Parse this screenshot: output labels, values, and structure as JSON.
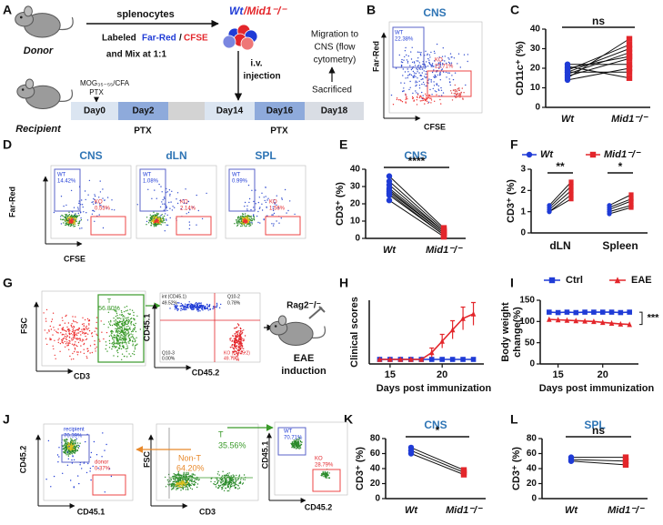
{
  "panel_labels": [
    "A",
    "B",
    "C",
    "D",
    "E",
    "F",
    "G",
    "H",
    "I",
    "J",
    "K",
    "L"
  ],
  "a": {
    "donor": "Donor",
    "splenocytes": "splenocytes",
    "wt": "Wt",
    "mid1": "/Mid1⁻/⁻",
    "labeled": "Labeled",
    "far_red": "Far-Red",
    "slash": "/",
    "cfse": "CFSE",
    "mix": "and Mix at 1:1",
    "iv": "i.v.",
    "injection": "injection",
    "migration": [
      "Migration to",
      "CNS (flow",
      "cytometry)"
    ],
    "sacrificed": "Sacrificed",
    "recipient": "Recipient",
    "mog": "MOG₃₅₋₅₅/CFA",
    "ptx_top": "PTX",
    "days": [
      "Day0",
      "Day2",
      "Day14",
      "Day16",
      "Day18"
    ],
    "ptx_bottom": [
      "PTX",
      "PTX"
    ]
  },
  "b": {
    "title": "CNS",
    "y": "Far-Red",
    "x": "CFSE",
    "wt": "WT",
    "wt_pct": "22.38%",
    "ko": "KO",
    "ko_pct": "22.71%"
  },
  "d": {
    "y": "Far-Red",
    "x": "CFSE",
    "plots": [
      {
        "title": "CNS",
        "wt": "WT",
        "wt_pct": "14.42%",
        "ko": "KO",
        "ko_pct": "0.53%"
      },
      {
        "title": "dLN",
        "wt": "WT",
        "wt_pct": "1.08%",
        "ko": "KO",
        "ko_pct": "2.14%"
      },
      {
        "title": "SPL",
        "wt": "WT",
        "wt_pct": "0.99%",
        "ko": "KO",
        "ko_pct": "1.56%"
      }
    ]
  },
  "g": {
    "y": "FSC",
    "x": "CD3",
    "t": "T",
    "t_pct": "56.80%",
    "q_y": "CD45.1",
    "q_x": "CD45.2",
    "q1": "int (CD45.1)",
    "q1_pct": "49.52%",
    "q2": "Q10-2",
    "q2_pct": "0.78%",
    "q3": "Q10-3",
    "q3_pct": "0.00%",
    "q4": "KO (CD45.2)",
    "q4_pct": "49.70%",
    "mouse": "Rag2⁻/⁻",
    "eae": "EAE",
    "induction": "induction"
  },
  "j": {
    "p1_y": "CD45.2",
    "p1_x": "CD45.1",
    "recipient": "recipient",
    "recipient_pct": "70.39%",
    "donor": "donor",
    "donor_pct": "0.37%",
    "non_t": "Non-T",
    "non_t_pct": "64.20%",
    "t": "T",
    "t_pct": "35.56%",
    "p2_y": "FSC",
    "p2_x": "CD3",
    "wt": "WT",
    "wt_pct": "70.71%",
    "ko": "KO",
    "ko_pct": "28.79%",
    "p3_y": "CD45.1",
    "p3_x": "CD45.2"
  },
  "chart_data": [
    {
      "type": "paired",
      "ylabel": "CD11c⁺ (%)",
      "series": [
        {
          "name": "Wt",
          "color": "#1f3bd6",
          "values": [
            14,
            16,
            17,
            18,
            19,
            20,
            21,
            22,
            15,
            18
          ]
        },
        {
          "name": "Mid1⁻/⁻",
          "color": "#e3262b",
          "values": [
            20,
            25,
            28,
            30,
            32,
            26,
            15,
            22,
            35,
            18
          ]
        }
      ],
      "ylim": [
        0,
        40
      ],
      "yticks": [
        0,
        10,
        20,
        30,
        40
      ],
      "significance": "ns"
    },
    {
      "type": "paired",
      "title": "CNS",
      "ylabel": "CD3⁺ (%)",
      "series": [
        {
          "name": "Wt",
          "color": "#1f3bd6",
          "values": [
            36,
            33,
            31,
            29,
            28,
            27,
            26,
            25,
            22
          ]
        },
        {
          "name": "Mid1⁻/⁻",
          "color": "#e3262b",
          "values": [
            6,
            5,
            4,
            4,
            3,
            3,
            2,
            2,
            1
          ]
        }
      ],
      "ylim": [
        0,
        40
      ],
      "yticks": [
        0,
        10,
        20,
        30,
        40
      ],
      "significance": "****"
    },
    {
      "type": "paired_groups",
      "ylabel": "CD3⁺ (%)",
      "categories": [
        "dLN",
        "Spleen"
      ],
      "series": [
        {
          "name": "Wt",
          "color": "#1f3bd6",
          "values": [
            [
              1.0,
              1.1,
              1.2,
              1.3,
              1.0
            ],
            [
              1.0,
              1.1,
              1.2,
              1.3,
              0.9
            ]
          ]
        },
        {
          "name": "Mid1⁻/⁻",
          "color": "#e3262b",
          "values": [
            [
              1.8,
              2.0,
              2.2,
              2.4,
              1.6
            ],
            [
              1.3,
              1.5,
              1.6,
              1.8,
              1.2
            ]
          ]
        }
      ],
      "ylim": [
        0,
        3
      ],
      "yticks": [
        0,
        1,
        2,
        3
      ],
      "significance": [
        "**",
        "*"
      ],
      "legend": "top"
    },
    {
      "type": "line",
      "ylabel": "Clinical scores",
      "xlabel": "Days post immunization",
      "x": [
        14,
        15,
        16,
        17,
        18,
        19,
        20,
        21,
        22,
        23
      ],
      "series": [
        {
          "color": "#1f3bd6",
          "marker": "square",
          "values": [
            0,
            0,
            0,
            0,
            0,
            0,
            0,
            0,
            0,
            0
          ]
        },
        {
          "color": "#e3262b",
          "marker": "triangle",
          "values": [
            0,
            0,
            0,
            0,
            0,
            0.3,
            0.8,
            1.3,
            1.8,
            2.0
          ],
          "errors": [
            0,
            0,
            0,
            0,
            0,
            0.2,
            0.3,
            0.4,
            0.5,
            0.5
          ]
        }
      ],
      "xlim": [
        13,
        24
      ],
      "xticks": [
        15,
        20
      ],
      "ylim": [
        -0.2,
        2.6
      ]
    },
    {
      "type": "line",
      "ylabel": [
        "Body weight",
        "change(%)"
      ],
      "xlabel": "Days post immunization",
      "x": [
        14,
        15,
        16,
        17,
        18,
        19,
        20,
        21,
        22,
        23
      ],
      "series": [
        {
          "name": "Ctrl",
          "color": "#1f3bd6",
          "marker": "square",
          "values": [
            122,
            121,
            122,
            121,
            122,
            122,
            122,
            122,
            121,
            122
          ]
        },
        {
          "name": "EAE",
          "color": "#e3262b",
          "marker": "triangle",
          "values": [
            105,
            104,
            103,
            102,
            101,
            100,
            98,
            96,
            94,
            93
          ]
        }
      ],
      "xlim": [
        13,
        24
      ],
      "xticks": [
        15,
        20
      ],
      "ylim": [
        0,
        150
      ],
      "yticks": [
        0,
        50,
        100,
        150
      ],
      "significance": "***",
      "legend": "top"
    },
    {
      "type": "paired",
      "title": "CNS",
      "ylabel": "CD3⁺ (%)",
      "series": [
        {
          "name": "Wt",
          "color": "#1f3bd6",
          "values": [
            68,
            64,
            60
          ]
        },
        {
          "name": "Mid1⁻/⁻",
          "color": "#e3262b",
          "values": [
            38,
            35,
            32
          ]
        }
      ],
      "ylim": [
        0,
        80
      ],
      "yticks": [
        0,
        20,
        40,
        60,
        80
      ],
      "significance": "*"
    },
    {
      "type": "paired",
      "title": "SPL",
      "ylabel": "CD3⁺ (%)",
      "series": [
        {
          "name": "Wt",
          "color": "#1f3bd6",
          "values": [
            55,
            52,
            50
          ]
        },
        {
          "name": "Mid1⁻/⁻",
          "color": "#e3262b",
          "values": [
            55,
            50,
            45
          ]
        }
      ],
      "ylim": [
        0,
        80
      ],
      "yticks": [
        0,
        20,
        40,
        60,
        80
      ],
      "significance": "ns"
    }
  ]
}
